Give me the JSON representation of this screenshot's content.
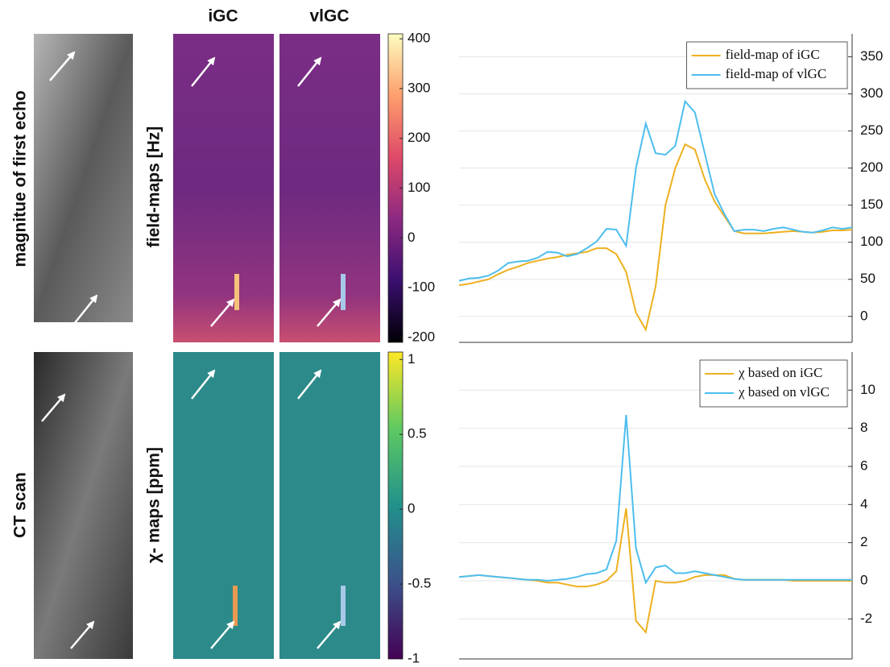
{
  "figure": {
    "column_titles": [
      "iGC",
      "vlGC"
    ],
    "row_labels": [
      "magnitue of first echo",
      "CT scan"
    ],
    "map_labels": [
      "field-maps [Hz]",
      "χ- maps [ppm]"
    ]
  },
  "chart_data": [
    {
      "type": "colorbar",
      "colormap": "magma",
      "ylim": [
        -210,
        410
      ],
      "yticks": [
        -200,
        -100,
        0,
        100,
        200,
        300,
        400
      ]
    },
    {
      "type": "colorbar",
      "colormap": "viridis",
      "ylim": [
        -1,
        1.05
      ],
      "yticks": [
        -1,
        -0.5,
        0,
        0.5,
        1
      ]
    },
    {
      "type": "line",
      "legend": "upper right",
      "grid": true,
      "x": [
        0,
        1,
        2,
        3,
        4,
        5,
        6,
        7,
        8,
        9,
        10,
        11,
        12,
        13,
        14,
        15,
        16,
        17,
        18,
        19,
        20,
        21,
        22,
        23,
        24,
        25,
        26,
        27,
        28,
        29,
        30,
        31,
        32,
        33,
        34,
        35,
        36,
        37,
        38,
        39,
        40
      ],
      "xlim": [
        0,
        40
      ],
      "ylim": [
        -35,
        381
      ],
      "yticks": [
        0,
        50,
        100,
        150,
        200,
        250,
        300,
        350
      ],
      "series": [
        {
          "name": "field-map of iGC",
          "color": "#EDB120",
          "values": [
            42,
            44,
            47,
            50,
            57,
            63,
            67,
            72,
            75,
            78,
            80,
            83,
            85,
            87,
            92,
            92,
            84,
            60,
            5,
            -18,
            40,
            150,
            200,
            232,
            225,
            185,
            155,
            135,
            115,
            112,
            112,
            112,
            113,
            114,
            115,
            114,
            113,
            114,
            116,
            116,
            117
          ]
        },
        {
          "name": "field-map of vlGC",
          "color": "#4DBEEE",
          "values": [
            48,
            51,
            52,
            55,
            62,
            72,
            74,
            75,
            79,
            87,
            86,
            81,
            84,
            92,
            101,
            118,
            117,
            95,
            200,
            260,
            220,
            218,
            230,
            290,
            275,
            220,
            165,
            138,
            115,
            117,
            117,
            115,
            118,
            120,
            117,
            114,
            113,
            116,
            120,
            118,
            120
          ]
        }
      ]
    },
    {
      "type": "line",
      "legend": "upper right",
      "grid": true,
      "x": [
        0,
        1,
        2,
        3,
        4,
        5,
        6,
        7,
        8,
        9,
        10,
        11,
        12,
        13,
        14,
        15,
        16,
        17,
        18,
        19,
        20,
        21,
        22,
        23,
        24,
        25,
        26,
        27,
        28,
        29,
        30,
        31,
        32,
        33,
        34,
        35,
        36,
        37,
        38,
        39,
        40
      ],
      "xlim": [
        0,
        40
      ],
      "ylim": [
        -4.1,
        12
      ],
      "yticks": [
        -2,
        0,
        2,
        4,
        6,
        8,
        10
      ],
      "series": [
        {
          "name": "χ based on iGC",
          "color": "#EDB120",
          "values": [
            0.2,
            0.25,
            0.3,
            0.25,
            0.2,
            0.15,
            0.1,
            0.05,
            0.0,
            -0.1,
            -0.1,
            -0.2,
            -0.3,
            -0.3,
            -0.2,
            0.0,
            0.5,
            3.8,
            -2.1,
            -2.7,
            0.0,
            -0.1,
            -0.1,
            0.0,
            0.2,
            0.3,
            0.3,
            0.3,
            0.1,
            0.05,
            0.05,
            0.05,
            0.05,
            0.05,
            0.0,
            0.0,
            0.0,
            0.0,
            0.0,
            0.0,
            0.0
          ]
        },
        {
          "name": "χ based on vlGC",
          "color": "#4DBEEE",
          "values": [
            0.2,
            0.25,
            0.3,
            0.25,
            0.2,
            0.15,
            0.1,
            0.05,
            0.05,
            0.0,
            0.05,
            0.1,
            0.2,
            0.35,
            0.4,
            0.6,
            2.1,
            8.7,
            1.7,
            -0.1,
            0.7,
            0.8,
            0.4,
            0.4,
            0.5,
            0.4,
            0.3,
            0.2,
            0.1,
            0.05,
            0.05,
            0.05,
            0.05,
            0.05,
            0.05,
            0.05,
            0.05,
            0.05,
            0.05,
            0.05,
            0.05
          ]
        }
      ]
    }
  ]
}
